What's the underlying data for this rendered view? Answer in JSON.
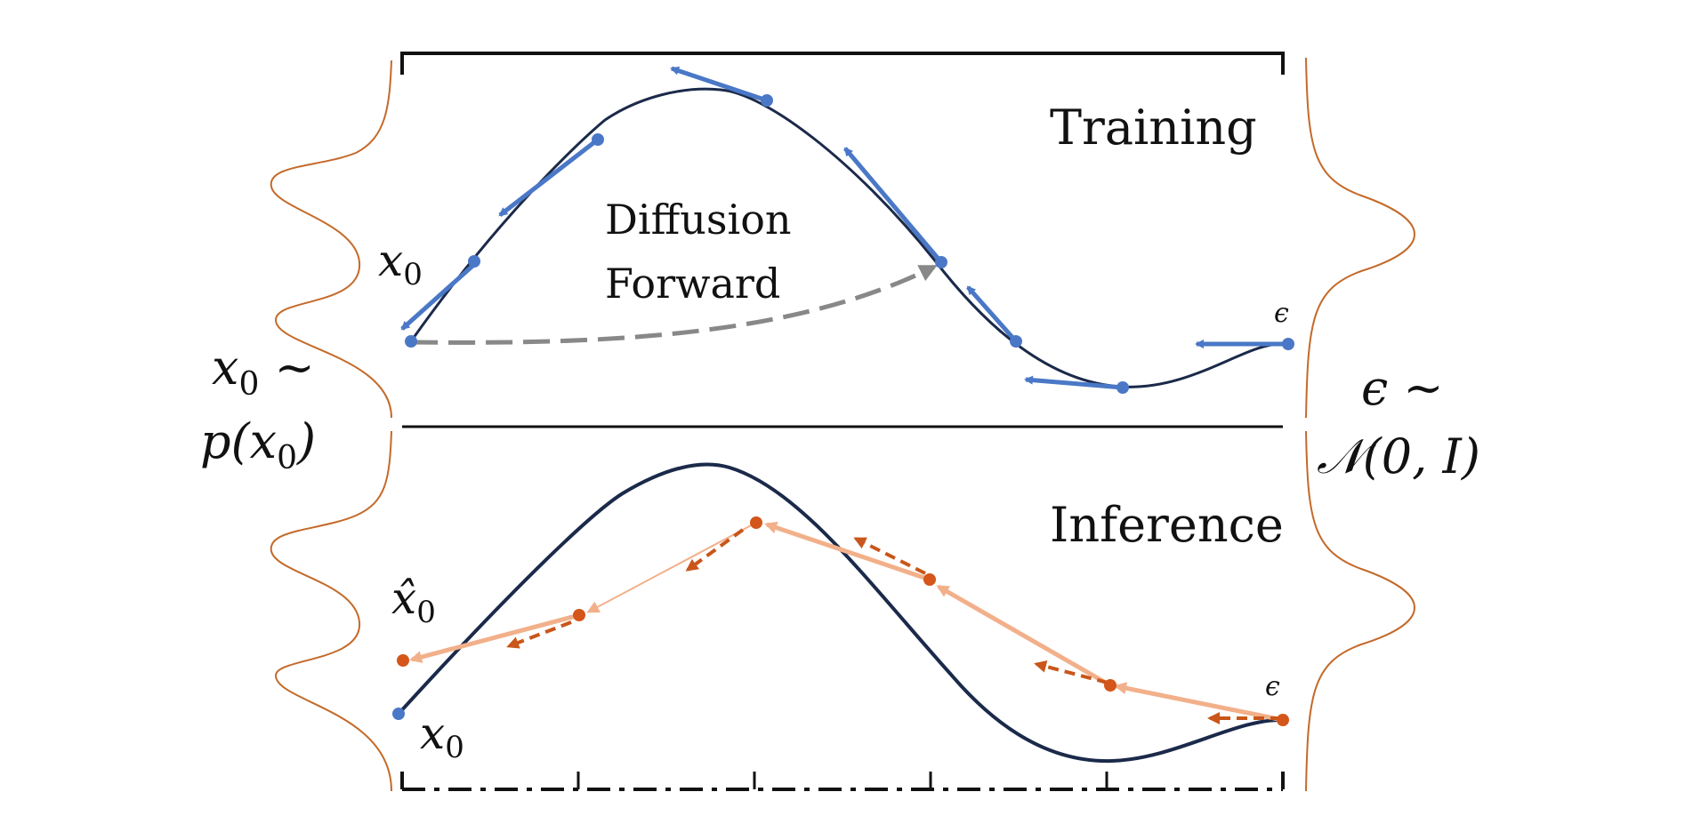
{
  "panels": {
    "training": {
      "title": "Training"
    },
    "inference": {
      "title": "Inference"
    }
  },
  "forward": {
    "line1": "Diffusion",
    "line2": "Forward"
  },
  "labels": {
    "x0_var": "x",
    "x0_sub": "0",
    "x0hat_var": "x̂",
    "x0hat_sub": "0",
    "eps": "ϵ",
    "data_dist_line1_var": "x",
    "data_dist_line1_sub": "0",
    "data_dist_line1_tilde": " ~",
    "data_dist_line2_a": "p(x",
    "data_dist_line2_sub": "0",
    "data_dist_line2_b": ")",
    "noise_dist_line1": "ϵ ~",
    "noise_dist_line2": "𝒩(0, I)"
  },
  "colors": {
    "trajectory": "#1b2a4a",
    "training_points": "#4a78c7",
    "inference_points": "#d4561a",
    "inference_arrows": "#f2b08a",
    "inference_dashed": "#c9561a",
    "forward_arrow": "#888888",
    "distribution": "#c46a2a",
    "frame": "#111111"
  }
}
